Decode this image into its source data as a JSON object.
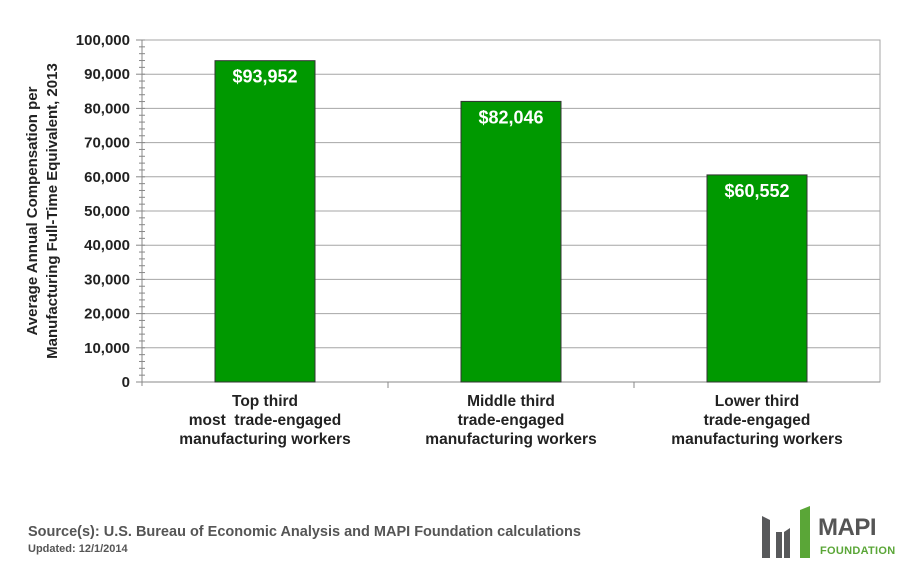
{
  "chart_data": {
    "type": "bar",
    "categories": [
      [
        "Top third",
        "most  trade-engaged",
        "manufacturing workers"
      ],
      [
        "Middle third",
        "trade-engaged",
        "manufacturing workers"
      ],
      [
        "Lower third",
        "trade-engaged",
        "manufacturing workers"
      ]
    ],
    "values": [
      93952,
      82046,
      60552
    ],
    "data_labels": [
      "$93,952",
      "$82,046",
      "$60,552"
    ],
    "ylabel": [
      "Average Annual Compensation per",
      "Manufacturing Full-Time Equivalent, 2013"
    ],
    "ylim": [
      0,
      100000
    ],
    "yticks": [
      0,
      10000,
      20000,
      30000,
      40000,
      50000,
      60000,
      70000,
      80000,
      90000,
      100000
    ],
    "ytick_labels": [
      "0",
      "10,000",
      "20,000",
      "30,000",
      "40,000",
      "50,000",
      "60,000",
      "70,000",
      "80,000",
      "90,000",
      "100,000"
    ],
    "grid": true,
    "bar_color": "#009900",
    "grid_color": "#a6a6a6"
  },
  "footer": {
    "source": "Source(s): U.S. Bureau of Economic Analysis and MAPI Foundation calculations",
    "updated": "Updated: 12/1/2014"
  },
  "logo": {
    "name": "MAPI",
    "sub": "FOUNDATION",
    "gray": "#58595b",
    "green": "#5aa637"
  }
}
